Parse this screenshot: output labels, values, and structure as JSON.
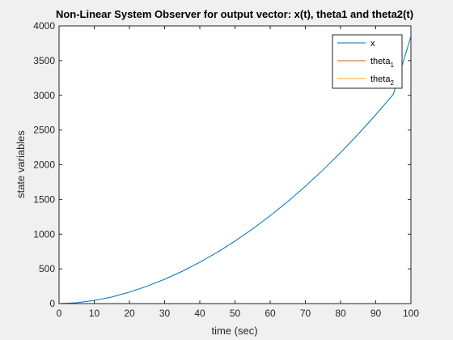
{
  "chart_data": {
    "type": "line",
    "title": "Non-Linear System Observer for output vector: x(t), theta1 and theta2(t)",
    "xlabel": "time (sec)",
    "ylabel": "state variables",
    "xlim": [
      0,
      100
    ],
    "ylim": [
      0,
      4000
    ],
    "xticks": [
      0,
      10,
      20,
      30,
      40,
      50,
      60,
      70,
      80,
      90,
      100
    ],
    "yticks": [
      0,
      500,
      1000,
      1500,
      2000,
      2500,
      3000,
      3500,
      4000
    ],
    "grid": false,
    "legend_position": "top-right",
    "series": [
      {
        "name": "x",
        "name_base": "x",
        "name_sub": "",
        "color": "#0072BD",
        "x": [
          0,
          5,
          10,
          15,
          20,
          25,
          30,
          35,
          40,
          45,
          50,
          55,
          60,
          65,
          70,
          75,
          80,
          85,
          90,
          95,
          100
        ],
        "y": [
          0,
          12,
          45,
          95,
          165,
          250,
          350,
          465,
          595,
          740,
          900,
          1075,
          1265,
          1470,
          1690,
          1925,
          2175,
          2440,
          2720,
          3015,
          3850
        ]
      },
      {
        "name": "theta1",
        "name_base": "theta",
        "name_sub": "1",
        "color": "#D95319",
        "x": [
          0,
          100
        ],
        "y": [
          0,
          0
        ]
      },
      {
        "name": "theta2",
        "name_base": "theta",
        "name_sub": "2",
        "color": "#EDB120",
        "x": [
          0,
          100
        ],
        "y": [
          0,
          0
        ]
      }
    ]
  }
}
